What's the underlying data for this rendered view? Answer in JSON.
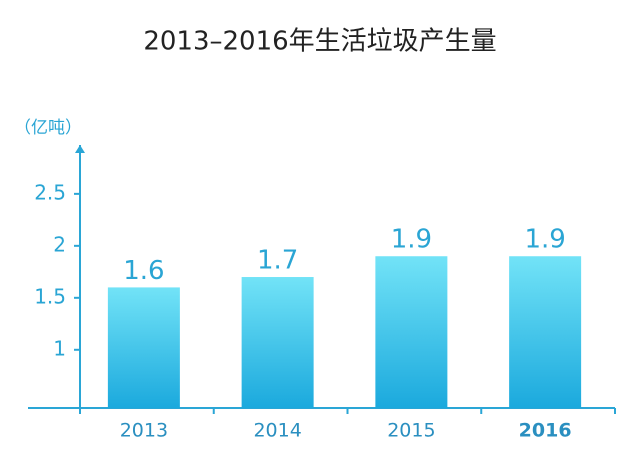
{
  "chart_data": {
    "type": "bar",
    "title": "2013–2016年生活垃圾产生量",
    "y_label": "（亿吨）",
    "categories": [
      "2013",
      "2014",
      "2015",
      "2016"
    ],
    "values": [
      1.6,
      1.7,
      1.9,
      1.9
    ],
    "color": "#1ba9dd",
    "ylim": [
      0.44,
      2.97
    ],
    "yticks": [
      1,
      1.5,
      2,
      2.5
    ],
    "grid": false
  }
}
